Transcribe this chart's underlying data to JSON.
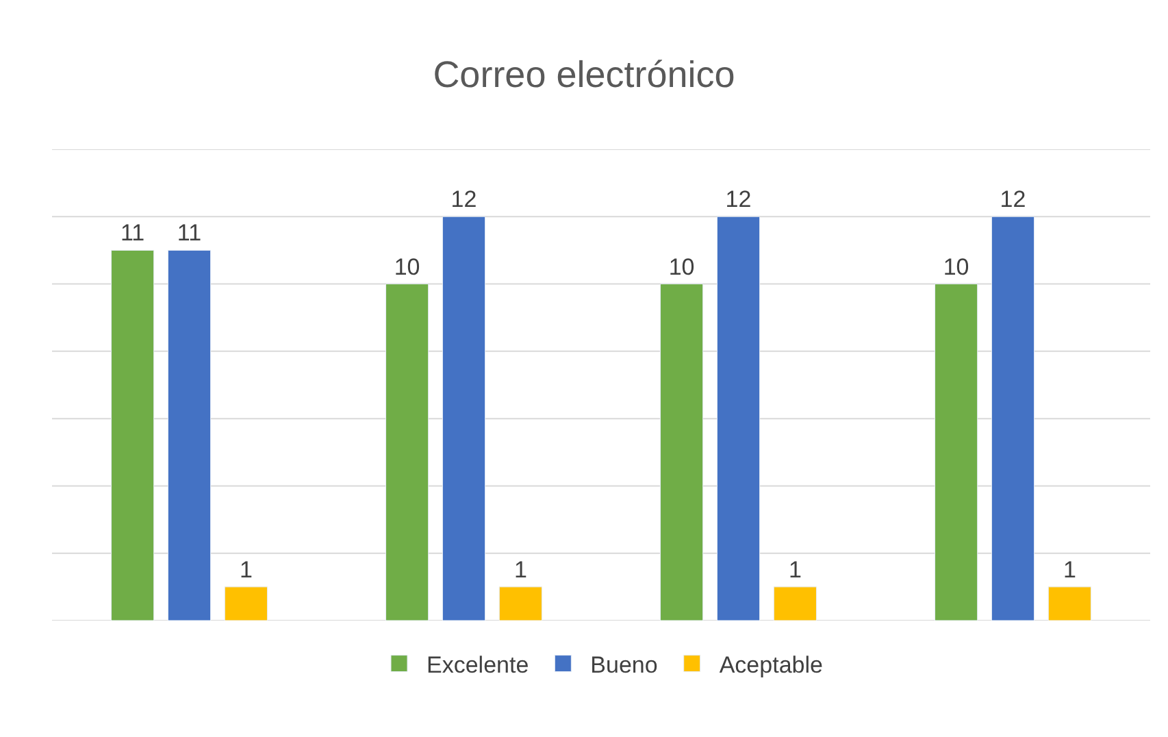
{
  "chart_data": {
    "type": "bar",
    "title": "Correo electrónico",
    "categories": [
      null,
      null,
      null,
      null
    ],
    "series": [
      {
        "name": "Excelente",
        "color": "#70ad47",
        "values": [
          11,
          10,
          10,
          10
        ]
      },
      {
        "name": "Bueno",
        "color": "#4472c4",
        "values": [
          11,
          12,
          12,
          12
        ]
      },
      {
        "name": "Aceptable",
        "color": "#ffc000",
        "values": [
          1,
          1,
          1,
          1
        ]
      }
    ],
    "ylim": [
      0,
      14
    ],
    "yticks": [
      {
        "value": 0,
        "label": null
      },
      {
        "value": 2,
        "label": null
      },
      {
        "value": 4,
        "label": null
      },
      {
        "value": 6,
        "label": null
      },
      {
        "value": 8,
        "label": null
      },
      {
        "value": 10,
        "label": null
      },
      {
        "value": 12,
        "label": null
      },
      {
        "value": 14,
        "label": null
      }
    ],
    "grid": "y",
    "legend": "bottom",
    "data_labels": true
  }
}
